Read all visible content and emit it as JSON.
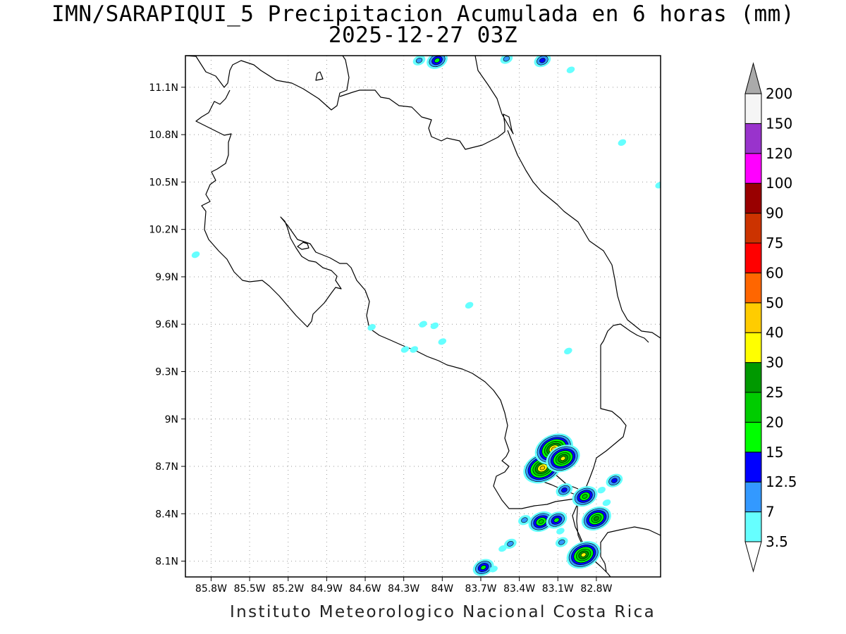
{
  "title": {
    "line1": "IMN/SARAPIQUI_5 Precipitacion Acumulada en 6 horas (mm)",
    "line2": "2025-12-27 03Z"
  },
  "footer": "Instituto Meteorologico Nacional Costa Rica",
  "map": {
    "lon_range": [
      -86.0,
      -82.3
    ],
    "lat_range": [
      8.0,
      11.3
    ],
    "grid": "dotted",
    "x_ticks": [
      {
        "lon": -85.8,
        "label": "85.8W"
      },
      {
        "lon": -85.5,
        "label": "85.5W"
      },
      {
        "lon": -85.2,
        "label": "85.2W"
      },
      {
        "lon": -84.9,
        "label": "84.9W"
      },
      {
        "lon": -84.6,
        "label": "84.6W"
      },
      {
        "lon": -84.3,
        "label": "84.3W"
      },
      {
        "lon": -84.0,
        "label": "84W"
      },
      {
        "lon": -83.7,
        "label": "83.7W"
      },
      {
        "lon": -83.4,
        "label": "83.4W"
      },
      {
        "lon": -83.1,
        "label": "83.1W"
      },
      {
        "lon": -82.8,
        "label": "82.8W"
      }
    ],
    "y_ticks": [
      {
        "lat": 11.1,
        "label": "11.1N"
      },
      {
        "lat": 10.8,
        "label": "10.8N"
      },
      {
        "lat": 10.5,
        "label": "10.5N"
      },
      {
        "lat": 10.2,
        "label": "10.2N"
      },
      {
        "lat": 9.9,
        "label": "9.9N"
      },
      {
        "lat": 9.6,
        "label": "9.6N"
      },
      {
        "lat": 9.3,
        "label": "9.3N"
      },
      {
        "lat": 9.0,
        "label": "9N"
      },
      {
        "lat": 8.7,
        "label": "8.7N"
      },
      {
        "lat": 8.4,
        "label": "8.4N"
      },
      {
        "lat": 8.1,
        "label": "8.1N"
      }
    ],
    "precip_cells": [
      {
        "lon": -83.22,
        "lat": 8.69,
        "peak": 40
      },
      {
        "lon": -83.13,
        "lat": 8.81,
        "peak": 40
      },
      {
        "lon": -83.06,
        "lat": 8.75,
        "peak": 30
      },
      {
        "lon": -82.8,
        "lat": 8.37,
        "peak": 25
      },
      {
        "lon": -82.9,
        "lat": 8.14,
        "peak": 30
      },
      {
        "lon": -83.23,
        "lat": 8.35,
        "peak": 20
      },
      {
        "lon": -83.11,
        "lat": 8.36,
        "peak": 15
      },
      {
        "lon": -82.89,
        "lat": 8.51,
        "peak": 20
      },
      {
        "lon": -83.05,
        "lat": 8.55,
        "peak": 12.5
      },
      {
        "lon": -82.66,
        "lat": 8.61,
        "peak": 12.5
      },
      {
        "lon": -83.68,
        "lat": 8.06,
        "peak": 15
      },
      {
        "lon": -84.04,
        "lat": 11.27,
        "peak": 15
      },
      {
        "lon": -83.22,
        "lat": 11.27,
        "peak": 12.5
      },
      {
        "lon": -83.5,
        "lat": 11.28,
        "peak": 7
      },
      {
        "lon": -84.18,
        "lat": 11.27,
        "peak": 7
      },
      {
        "lon": -83.36,
        "lat": 8.36,
        "peak": 7
      },
      {
        "lon": -83.47,
        "lat": 8.21,
        "peak": 7
      },
      {
        "lon": -83.07,
        "lat": 8.22,
        "peak": 7
      },
      {
        "lon": -83.08,
        "lat": 8.29,
        "peak": 3.5
      },
      {
        "lon": -83.6,
        "lat": 8.05,
        "peak": 3.5
      },
      {
        "lon": -82.72,
        "lat": 8.47,
        "peak": 3.5
      },
      {
        "lon": -82.76,
        "lat": 8.55,
        "peak": 3.5
      },
      {
        "lon": -83.53,
        "lat": 8.18,
        "peak": 3.5
      },
      {
        "lon": -85.92,
        "lat": 10.04,
        "peak": 3.5
      },
      {
        "lon": -83.79,
        "lat": 9.72,
        "peak": 3.5
      },
      {
        "lon": -84.15,
        "lat": 9.6,
        "peak": 3.5
      },
      {
        "lon": -84.06,
        "lat": 9.59,
        "peak": 3.5
      },
      {
        "lon": -84.29,
        "lat": 9.44,
        "peak": 3.5
      },
      {
        "lon": -84.22,
        "lat": 9.44,
        "peak": 3.5
      },
      {
        "lon": -83.02,
        "lat": 9.43,
        "peak": 3.5
      },
      {
        "lon": -82.6,
        "lat": 10.75,
        "peak": 3.5
      },
      {
        "lon": -82.31,
        "lat": 10.48,
        "peak": 3.5
      },
      {
        "lon": -83.0,
        "lat": 11.21,
        "peak": 3.5
      },
      {
        "lon": -84.0,
        "lat": 9.49,
        "peak": 3.5
      },
      {
        "lon": -84.55,
        "lat": 9.58,
        "peak": 3.5
      }
    ]
  },
  "colorbar": {
    "levels": [
      "3.5",
      "7",
      "12.5",
      "15",
      "20",
      "25",
      "30",
      "40",
      "50",
      "60",
      "75",
      "90",
      "100",
      "120",
      "150",
      "200"
    ],
    "colors": [
      "#66ffff",
      "#3399ff",
      "#0000ff",
      "#00ff00",
      "#00cc00",
      "#009900",
      "#ffff00",
      "#ffcc00",
      "#ff6600",
      "#ff0000",
      "#cc3300",
      "#990000",
      "#ff00ff",
      "#9933cc",
      "#f5f5f5",
      "#aaaaaa"
    ]
  },
  "colors": {
    "coastline": "#000000",
    "grid": "#999999"
  }
}
